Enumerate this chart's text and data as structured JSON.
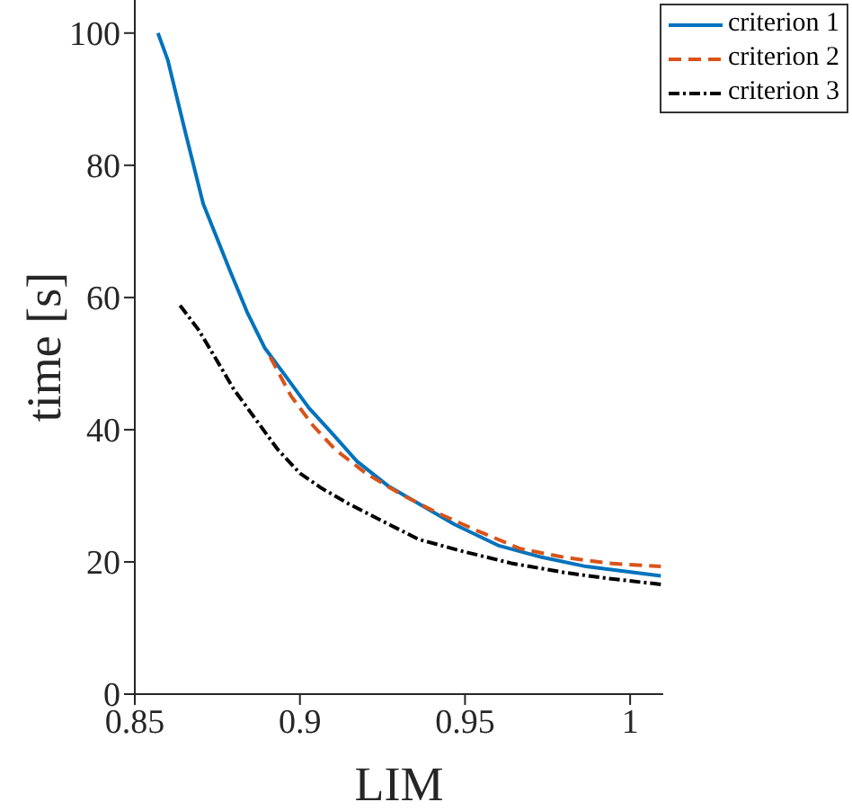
{
  "chart_data": {
    "type": "line",
    "xlabel": "LIM",
    "ylabel": "time [s]",
    "xlim": [
      0.85,
      1.01
    ],
    "xticks": [
      0.85,
      0.9,
      0.95,
      1
    ],
    "ylim": [
      0,
      105
    ],
    "yticks": [
      0,
      20,
      40,
      60,
      80,
      100
    ],
    "legend": "top right",
    "marker": "none",
    "series": [
      {
        "name": "criterion 1",
        "color": "#0072bd",
        "line_style": "solid",
        "x": [
          0.857,
          0.86,
          0.8653,
          0.8707,
          0.8787,
          0.884,
          0.8893,
          0.896,
          0.9027,
          0.9093,
          0.9173,
          0.9267,
          0.936,
          0.9467,
          0.96,
          0.9733,
          0.9867,
          1.0093
        ],
        "values": [
          100,
          95.9,
          85,
          74.2,
          64.2,
          57.8,
          52.4,
          47.9,
          43.3,
          39.7,
          35.2,
          31.5,
          28.8,
          25.7,
          22.5,
          20.7,
          19.3,
          17.9
        ]
      },
      {
        "name": "criterion 2",
        "color": "#d95319",
        "line_style": "dashed",
        "x": [
          0.891,
          0.8973,
          0.904,
          0.9107,
          0.92,
          0.9307,
          0.9413,
          0.9533,
          0.9667,
          0.98,
          0.9933,
          1.0093
        ],
        "values": [
          51,
          45.1,
          40.6,
          37,
          33.4,
          30.2,
          27.5,
          24.8,
          22,
          20.7,
          19.8,
          19.3
        ]
      },
      {
        "name": "criterion 3",
        "color": "#000000",
        "line_style": "dotted",
        "x": [
          0.8637,
          0.8693,
          0.8747,
          0.88,
          0.8867,
          0.8933,
          0.9,
          0.9067,
          0.9147,
          0.9253,
          0.936,
          0.9493,
          0.964,
          0.98,
          0.9933,
          1.0093
        ],
        "values": [
          58.8,
          55.1,
          50.6,
          46.1,
          41.5,
          37,
          33.4,
          31.1,
          28.8,
          26.1,
          23.4,
          21.6,
          19.8,
          18.4,
          17.5,
          16.6
        ]
      }
    ]
  }
}
